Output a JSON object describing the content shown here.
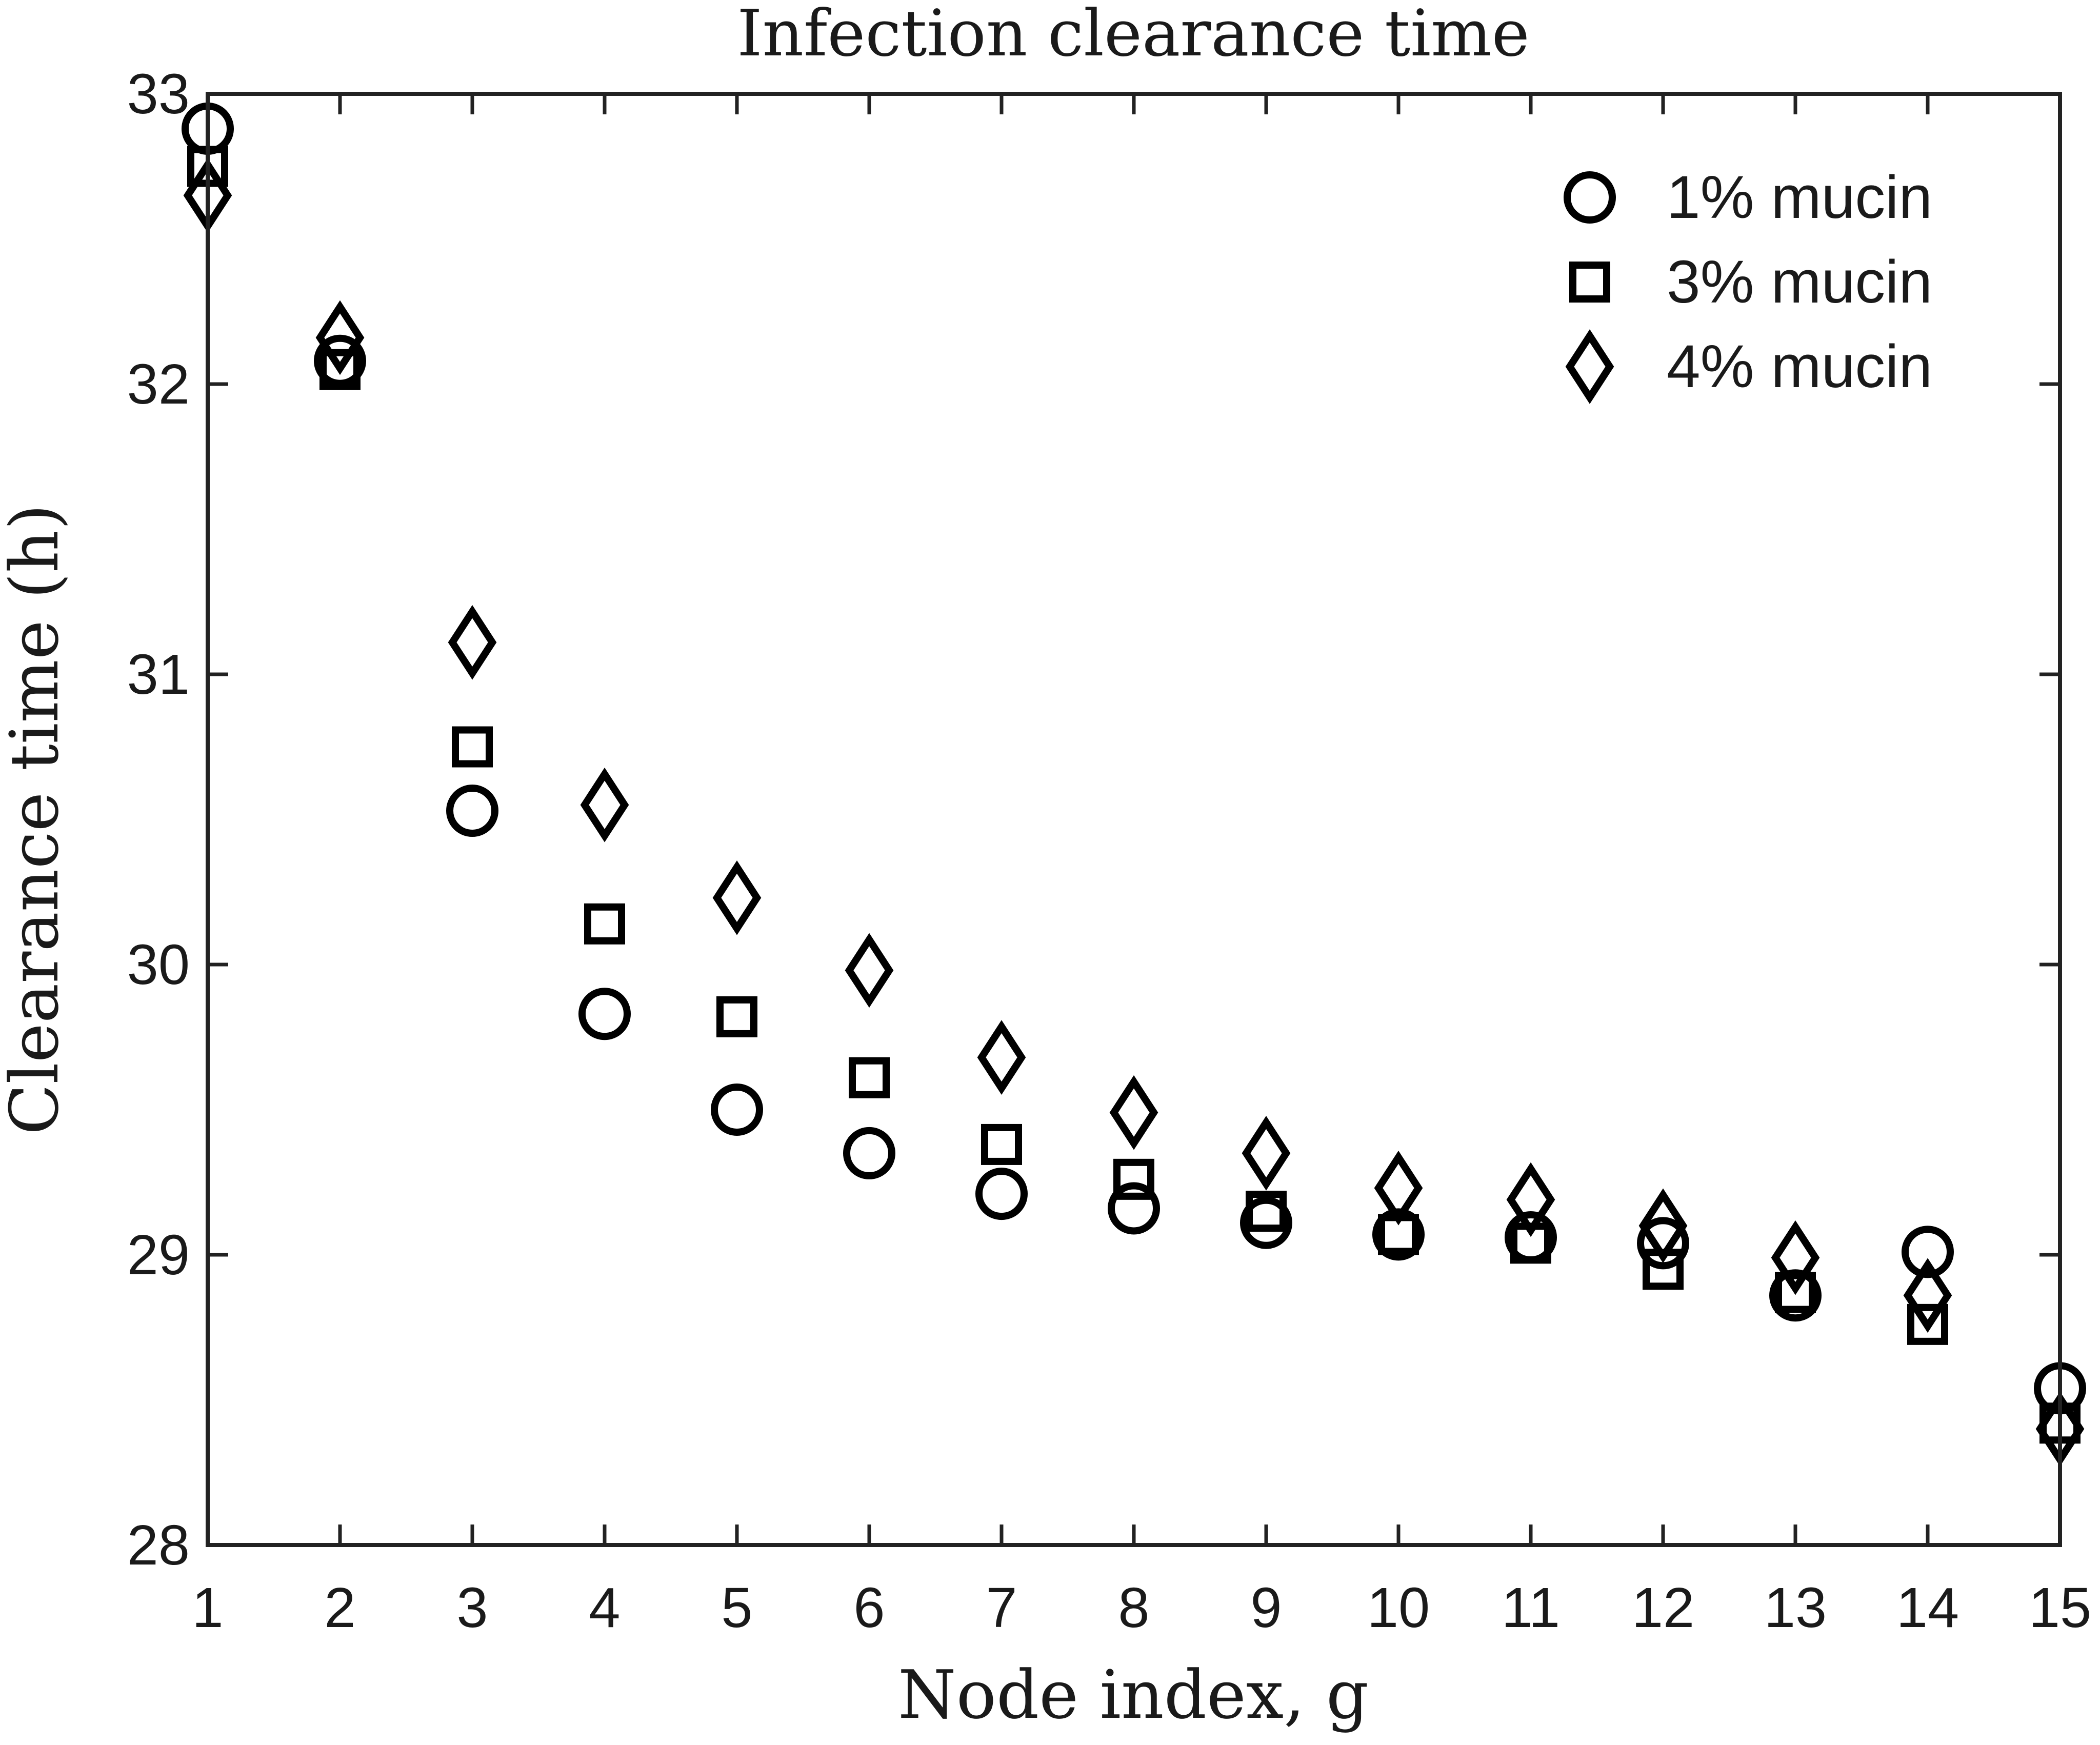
{
  "chart_data": {
    "type": "scatter",
    "title": "Infection clearance time",
    "xlabel": "Node index, g",
    "ylabel": "Clearance time (h)",
    "xlim": [
      1,
      15
    ],
    "ylim": [
      28,
      33
    ],
    "xticks": [
      1,
      2,
      3,
      4,
      5,
      6,
      7,
      8,
      9,
      10,
      11,
      12,
      13,
      14,
      15
    ],
    "yticks": [
      28,
      29,
      30,
      31,
      32,
      33
    ],
    "grid": false,
    "legend_position": "top-right",
    "x": [
      1,
      2,
      3,
      4,
      5,
      6,
      7,
      8,
      9,
      10,
      11,
      12,
      13,
      14,
      15
    ],
    "series": [
      {
        "name": "1% mucin",
        "marker": "circle",
        "values": [
          32.88,
          32.08,
          30.53,
          29.83,
          29.5,
          29.35,
          29.21,
          29.16,
          29.11,
          29.07,
          29.06,
          29.04,
          28.86,
          29.01,
          28.54
        ]
      },
      {
        "name": "3% mucin",
        "marker": "square",
        "values": [
          32.75,
          32.05,
          30.75,
          30.14,
          29.82,
          29.61,
          29.38,
          29.26,
          29.15,
          29.07,
          29.04,
          28.95,
          28.87,
          28.76,
          28.42
        ]
      },
      {
        "name": "4% mucin",
        "marker": "diamond",
        "values": [
          32.65,
          32.16,
          31.11,
          30.55,
          30.23,
          29.98,
          29.68,
          29.49,
          29.35,
          29.23,
          29.19,
          29.1,
          28.99,
          28.86,
          28.4
        ]
      }
    ],
    "colors": {
      "marker": "#000000",
      "axis": "#222222",
      "background": "#ffffff"
    }
  }
}
